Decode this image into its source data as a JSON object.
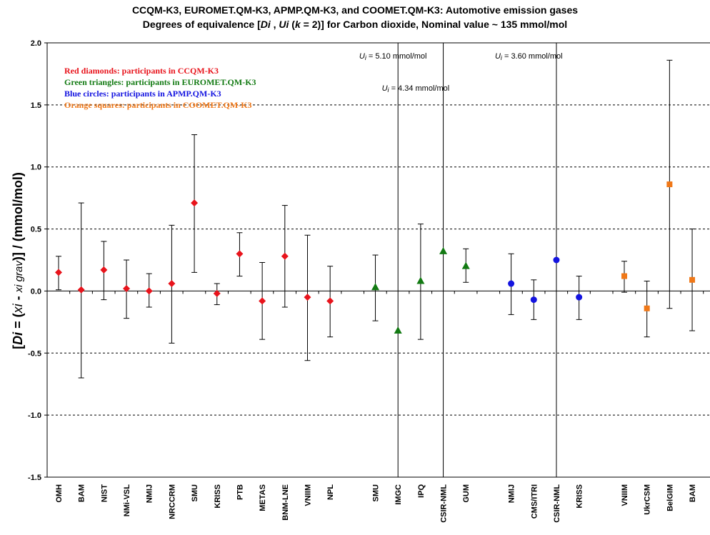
{
  "chart_data": {
    "type": "scatter",
    "title": "CCQM-K3, EUROMET.QM-K3, APMP.QM-K3, and COOMET.QM-K3: Automotive emission gases",
    "subtitle": "Degrees of equivalence [Di , Ui (k = 2)] for Carbon dioxide, Nominal value ~ 135 mmol/mol",
    "ylabel": "[Di = (xi - xi grav)] / (mmol/mol)",
    "ylim": [
      -1.5,
      2.0
    ],
    "yticks": [
      "2.0",
      "1.5",
      "1.0",
      "0.5",
      "0.0",
      "-0.5",
      "-1.0",
      "-1.5"
    ],
    "grid": "horizontal dashed",
    "legend_placement": "top-left",
    "legend": [
      {
        "text": "Red diamonds: participants in CCQM-K3",
        "color": "#e8141c"
      },
      {
        "text": "Green triangles: participants in EUROMET.QM-K3",
        "color": "#127a12"
      },
      {
        "text": "Blue circles: participants in APMP.QM-K3",
        "color": "#1414e0"
      },
      {
        "text": "Orange squares: participants in COOMET.QM-K3",
        "color": "#f07818"
      }
    ],
    "annotations": [
      {
        "text": "Ui = 5.10 mmol/mol",
        "slot": 15
      },
      {
        "text": "Ui = 4.34 mmol/mol",
        "slot": 16
      },
      {
        "text": "Ui = 3.60 mmol/mol",
        "slot": 21
      }
    ],
    "series": [
      {
        "group": "CCQM-K3",
        "marker": "diamond",
        "color": "#e8141c",
        "points": [
          {
            "label": "OMH",
            "slot": 0,
            "y": 0.15,
            "lo": 0.01,
            "hi": 0.28
          },
          {
            "label": "BAM",
            "slot": 1,
            "y": 0.01,
            "lo": -0.7,
            "hi": 0.71
          },
          {
            "label": "NIST",
            "slot": 2,
            "y": 0.17,
            "lo": -0.07,
            "hi": 0.4
          },
          {
            "label": "NMi-VSL",
            "slot": 3,
            "y": 0.02,
            "lo": -0.22,
            "hi": 0.25
          },
          {
            "label": "NMIJ",
            "slot": 4,
            "y": 0.0,
            "lo": -0.13,
            "hi": 0.14
          },
          {
            "label": "NRCCRM",
            "slot": 5,
            "y": 0.06,
            "lo": -0.42,
            "hi": 0.53
          },
          {
            "label": "SMU",
            "slot": 6,
            "y": 0.71,
            "lo": 0.15,
            "hi": 1.26
          },
          {
            "label": "KRISS",
            "slot": 7,
            "y": -0.02,
            "lo": -0.11,
            "hi": 0.06
          },
          {
            "label": "PTB",
            "slot": 8,
            "y": 0.3,
            "lo": 0.12,
            "hi": 0.47
          },
          {
            "label": "METAS",
            "slot": 9,
            "y": -0.08,
            "lo": -0.39,
            "hi": 0.23
          },
          {
            "label": "BNM-LNE",
            "slot": 10,
            "y": 0.28,
            "lo": -0.13,
            "hi": 0.69
          },
          {
            "label": "VNIIM",
            "slot": 11,
            "y": -0.05,
            "lo": -0.56,
            "hi": 0.45
          },
          {
            "label": "NPL",
            "slot": 12,
            "y": -0.08,
            "lo": -0.37,
            "hi": 0.2
          }
        ]
      },
      {
        "group": "EUROMET.QM-K3",
        "marker": "triangle",
        "color": "#127a12",
        "points": [
          {
            "label": "SMU",
            "slot": 14,
            "y": 0.03,
            "lo": -0.24,
            "hi": 0.29
          },
          {
            "label": "IMGC",
            "slot": 15,
            "y": -0.32,
            "lo": -5.42,
            "hi": 4.78
          },
          {
            "label": "IPQ",
            "slot": 16,
            "y": 0.08,
            "lo": -0.39,
            "hi": 0.54
          },
          {
            "label": "CSIR-NML",
            "slot": 17,
            "y": 0.32,
            "lo": -4.02,
            "hi": 4.66
          },
          {
            "label": "GUM",
            "slot": 18,
            "y": 0.2,
            "lo": 0.07,
            "hi": 0.34
          }
        ]
      },
      {
        "group": "APMP.QM-K3",
        "marker": "circle",
        "color": "#1414e0",
        "points": [
          {
            "label": "NMIJ",
            "slot": 20,
            "y": 0.06,
            "lo": -0.19,
            "hi": 0.3
          },
          {
            "label": "CMS/ITRI",
            "slot": 21,
            "y": -0.07,
            "lo": -0.23,
            "hi": 0.09
          },
          {
            "label": "CSIR-NML",
            "slot": 22,
            "y": 0.25,
            "lo": -3.35,
            "hi": 3.85
          },
          {
            "label": "KRISS",
            "slot": 23,
            "y": -0.05,
            "lo": -0.23,
            "hi": 0.12
          }
        ]
      },
      {
        "group": "COOMET.QM-K3",
        "marker": "square",
        "color": "#f07818",
        "points": [
          {
            "label": "VNIIM",
            "slot": 25,
            "y": 0.12,
            "lo": -0.01,
            "hi": 0.24
          },
          {
            "label": "UkrCSM",
            "slot": 26,
            "y": -0.14,
            "lo": -0.37,
            "hi": 0.08
          },
          {
            "label": "BelGIM",
            "slot": 27,
            "y": 0.86,
            "lo": -0.14,
            "hi": 1.86
          },
          {
            "label": "BAM",
            "slot": 28,
            "y": 0.09,
            "lo": -0.32,
            "hi": 0.5
          }
        ]
      }
    ]
  }
}
